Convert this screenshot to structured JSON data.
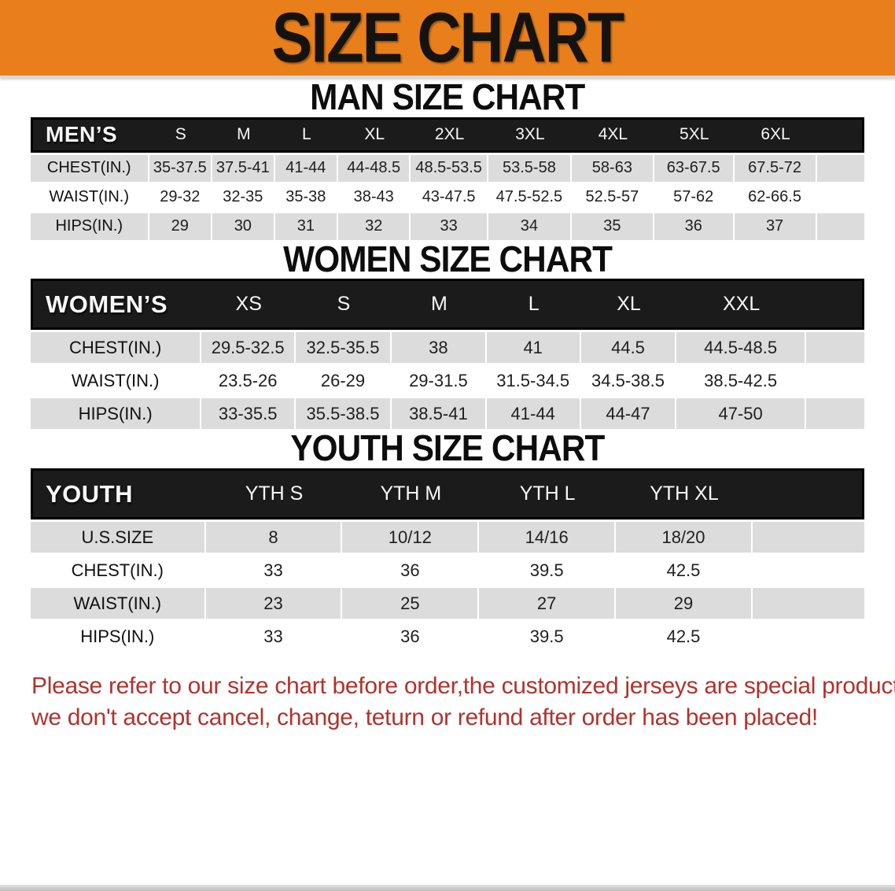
{
  "banner": {
    "title": "SIZE CHART",
    "bg_color": "#E87F1B"
  },
  "colors": {
    "header_band_bg": "#1B1B1B",
    "row_alt_bg": "#DCDCDC",
    "disclaimer_text": "#B2322C"
  },
  "sections": [
    {
      "heading": "MAN SIZE CHART",
      "table": {
        "header_label": "MEN’S",
        "sizes": [
          "S",
          "M",
          "L",
          "XL",
          "2XL",
          "3XL",
          "4XL",
          "5XL",
          "6XL"
        ],
        "rows": [
          {
            "label": "CHEST(IN.)",
            "values": [
              "35-37.5",
              "37.5-41",
              "41-44",
              "44-48.5",
              "48.5-53.5",
              "53.5-58",
              "58-63",
              "63-67.5",
              "67.5-72"
            ]
          },
          {
            "label": "WAIST(IN.)",
            "values": [
              "29-32",
              "32-35",
              "35-38",
              "38-43",
              "43-47.5",
              "47.5-52.5",
              "52.5-57",
              "57-62",
              "62-66.5"
            ]
          },
          {
            "label": "HIPS(IN.)",
            "values": [
              "29",
              "30",
              "31",
              "32",
              "33",
              "34",
              "35",
              "36",
              "37"
            ]
          }
        ]
      }
    },
    {
      "heading": "WOMEN SIZE CHART",
      "table": {
        "header_label": "WOMEN’S",
        "sizes": [
          "XS",
          "S",
          "M",
          "L",
          "XL",
          "XXL"
        ],
        "rows": [
          {
            "label": "CHEST(IN.)",
            "values": [
              "29.5-32.5",
              "32.5-35.5",
              "38",
              "41",
              "44.5",
              "44.5-48.5"
            ]
          },
          {
            "label": "WAIST(IN.)",
            "values": [
              "23.5-26",
              "26-29",
              "29-31.5",
              "31.5-34.5",
              "34.5-38.5",
              "38.5-42.5"
            ]
          },
          {
            "label": "HIPS(IN.)",
            "values": [
              "33-35.5",
              "35.5-38.5",
              "38.5-41",
              "41-44",
              "44-47",
              "47-50"
            ]
          }
        ]
      }
    },
    {
      "heading": "YOUTH SIZE CHART",
      "table": {
        "header_label": "YOUTH",
        "sizes": [
          "YTH S",
          "YTH M",
          "YTH L",
          "YTH XL"
        ],
        "rows": [
          {
            "label": "U.S.SIZE",
            "values": [
              "8",
              "10/12",
              "14/16",
              "18/20"
            ]
          },
          {
            "label": "CHEST(IN.)",
            "values": [
              "33",
              "36",
              "39.5",
              "42.5"
            ]
          },
          {
            "label": "WAIST(IN.)",
            "values": [
              "23",
              "25",
              "27",
              "29"
            ]
          },
          {
            "label": "HIPS(IN.)",
            "values": [
              "33",
              "36",
              "39.5",
              "42.5"
            ]
          }
        ]
      }
    }
  ],
  "disclaimer": {
    "lines": [
      "Please refer to our size chart before order,the customized jerseys are special products,",
      "we don't accept cancel, change, teturn or refund after order has been placed!"
    ]
  }
}
